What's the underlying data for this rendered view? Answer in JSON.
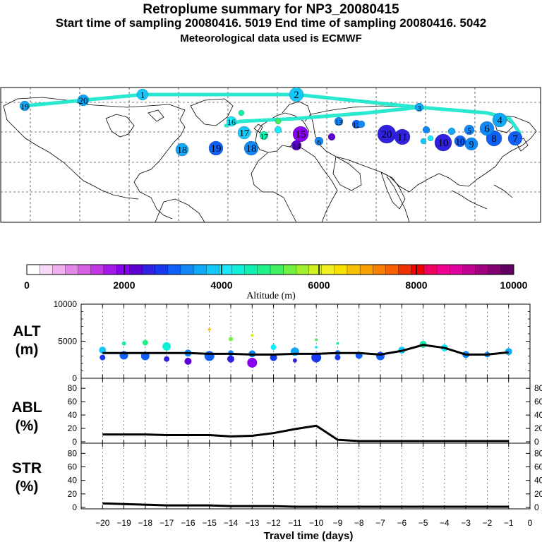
{
  "header": {
    "title": "Retroplume summary for NP3_20080415",
    "line2": "Start time of sampling 20080416.  5019     End time of sampling 20080416.  5042",
    "line3": "Meteorological data used is ECMWF"
  },
  "colors": {
    "scale": [
      "#ffffff",
      "#f7d8f7",
      "#eeb0ee",
      "#e388e8",
      "#d460e4",
      "#c038e4",
      "#a418ea",
      "#8800ee",
      "#5c00d0",
      "#3020e0",
      "#1838f0",
      "#1060f8",
      "#1088f8",
      "#10a8f8",
      "#14c8fa",
      "#18e8fb",
      "#10f0d8",
      "#10f0b0",
      "#20f088",
      "#40f060",
      "#70f040",
      "#a0f030",
      "#d0f020",
      "#f0f020",
      "#f8e000",
      "#f8c000",
      "#f8a000",
      "#f88000",
      "#f86000",
      "#f03000",
      "#f00000",
      "#f00060",
      "#f00090",
      "#e000a0",
      "#c00090",
      "#a00080",
      "#800070",
      "#600060"
    ],
    "line": "#000000",
    "plume": "#20e0d0"
  },
  "colorbar": {
    "min": 0,
    "max": 10000,
    "tick_labels": [
      "0",
      "2000",
      "4000",
      "6000",
      "8000",
      "10000"
    ],
    "major_ticks": [
      2000,
      4000,
      6000,
      8000
    ],
    "label": "Altitude (m)"
  },
  "map": {
    "plume_path_labels": [
      "20",
      "19",
      "18",
      "17",
      "16",
      "15",
      "14",
      "13",
      "12",
      "11",
      "10",
      "9",
      "8",
      "7",
      "6",
      "5",
      "4",
      "3",
      "2",
      "1"
    ]
  },
  "chart_data": [
    {
      "type": "line",
      "name": "ALT",
      "ylabel": "ALT\n(m)",
      "ylabel_line1": "ALT",
      "ylabel_line2": "(m)",
      "ylim": [
        0,
        10000
      ],
      "yticks": [
        0,
        5000,
        10000
      ],
      "ytick_labels": [
        "0",
        "5000",
        "10000"
      ],
      "x": [
        -20,
        -19,
        -18,
        -17,
        -16,
        -15,
        -14,
        -13,
        -12,
        -11,
        -10,
        -9,
        -8,
        -7,
        -6,
        -5,
        -4,
        -3,
        -2,
        -1
      ],
      "values": [
        3400,
        3400,
        3400,
        3400,
        3400,
        3300,
        3300,
        3200,
        3200,
        3300,
        3300,
        3400,
        3400,
        3200,
        3700,
        4500,
        4100,
        3200,
        3200,
        3500
      ],
      "cluster_points": [
        {
          "x": -20,
          "y": 3800,
          "s": 5
        },
        {
          "x": -20,
          "y": 2800,
          "s": 4
        },
        {
          "x": -19,
          "y": 4700,
          "s": 3
        },
        {
          "x": -19,
          "y": 3100,
          "s": 6
        },
        {
          "x": -18,
          "y": 4800,
          "s": 4
        },
        {
          "x": -18,
          "y": 3000,
          "s": 6
        },
        {
          "x": -17,
          "y": 4300,
          "s": 6
        },
        {
          "x": -17,
          "y": 2600,
          "s": 4
        },
        {
          "x": -16,
          "y": 3400,
          "s": 5
        },
        {
          "x": -16,
          "y": 2300,
          "s": 5
        },
        {
          "x": -15,
          "y": 6600,
          "s": 2
        },
        {
          "x": -15,
          "y": 3000,
          "s": 7
        },
        {
          "x": -14,
          "y": 5300,
          "s": 3
        },
        {
          "x": -14,
          "y": 3400,
          "s": 4
        },
        {
          "x": -14,
          "y": 2600,
          "s": 5
        },
        {
          "x": -13,
          "y": 5800,
          "s": 2
        },
        {
          "x": -13,
          "y": 3300,
          "s": 5
        },
        {
          "x": -13,
          "y": 2100,
          "s": 7
        },
        {
          "x": -12,
          "y": 4200,
          "s": 4
        },
        {
          "x": -12,
          "y": 2800,
          "s": 5
        },
        {
          "x": -11,
          "y": 3600,
          "s": 6
        },
        {
          "x": -11,
          "y": 2400,
          "s": 3
        },
        {
          "x": -10,
          "y": 5200,
          "s": 2
        },
        {
          "x": -10,
          "y": 4200,
          "s": 2
        },
        {
          "x": -10,
          "y": 2800,
          "s": 7
        },
        {
          "x": -9,
          "y": 4700,
          "s": 2
        },
        {
          "x": -9,
          "y": 3400,
          "s": 4
        },
        {
          "x": -9,
          "y": 2800,
          "s": 4
        },
        {
          "x": -8,
          "y": 3100,
          "s": 5
        },
        {
          "x": -7,
          "y": 3000,
          "s": 6
        },
        {
          "x": -6,
          "y": 3800,
          "s": 5
        },
        {
          "x": -5,
          "y": 4600,
          "s": 5
        },
        {
          "x": -4,
          "y": 4100,
          "s": 5
        },
        {
          "x": -3,
          "y": 3200,
          "s": 5
        },
        {
          "x": -2,
          "y": 3200,
          "s": 4
        },
        {
          "x": -1,
          "y": 3600,
          "s": 5
        }
      ]
    },
    {
      "type": "line",
      "name": "ABL",
      "ylabel_line1": "ABL",
      "ylabel_line2": "(%)",
      "ylim": [
        0,
        95
      ],
      "yticks": [
        0,
        20,
        40,
        60,
        80
      ],
      "ytick_labels": [
        "0",
        "20",
        "40",
        "60",
        "80"
      ],
      "x": [
        -20,
        -19,
        -18,
        -17,
        -16,
        -15,
        -14,
        -13,
        -12,
        -11,
        -10,
        -9,
        -8,
        -7,
        -6,
        -5,
        -4,
        -3,
        -2,
        -1
      ],
      "values": [
        11,
        11,
        11,
        10,
        10,
        10,
        8,
        9,
        13,
        19,
        24,
        3,
        1,
        1,
        1,
        1,
        1,
        1,
        1,
        1
      ]
    },
    {
      "type": "line",
      "name": "STR",
      "ylabel_line1": "STR",
      "ylabel_line2": "(%)",
      "ylim": [
        0,
        95
      ],
      "yticks": [
        0,
        20,
        40,
        60,
        80
      ],
      "ytick_labels": [
        "0",
        "20",
        "40",
        "60",
        "80"
      ],
      "x": [
        -20,
        -19,
        -18,
        -17,
        -16,
        -15,
        -14,
        -13,
        -12,
        -11,
        -10,
        -9,
        -8,
        -7,
        -6,
        -5,
        -4,
        -3,
        -2,
        -1
      ],
      "values": [
        6,
        5,
        4,
        3,
        3,
        3,
        2,
        2,
        2,
        1,
        1,
        1,
        1,
        1,
        1,
        1,
        1,
        1,
        1,
        1
      ]
    }
  ],
  "xaxis": {
    "ticks": [
      -20,
      -19,
      -18,
      -17,
      -16,
      -15,
      -14,
      -13,
      -12,
      -11,
      -10,
      -9,
      -8,
      -7,
      -6,
      -5,
      -4,
      -3,
      -2,
      -1,
      0
    ],
    "tick_labels": [
      "−20",
      "−19",
      "−18",
      "−17",
      "−16",
      "−15",
      "−14",
      "−13",
      "−12",
      "−11",
      "−10",
      "−9",
      "−8",
      "−7",
      "−6",
      "−5",
      "−4",
      "−3",
      "−2",
      "−1",
      "0"
    ],
    "label": "Travel time (days)"
  }
}
